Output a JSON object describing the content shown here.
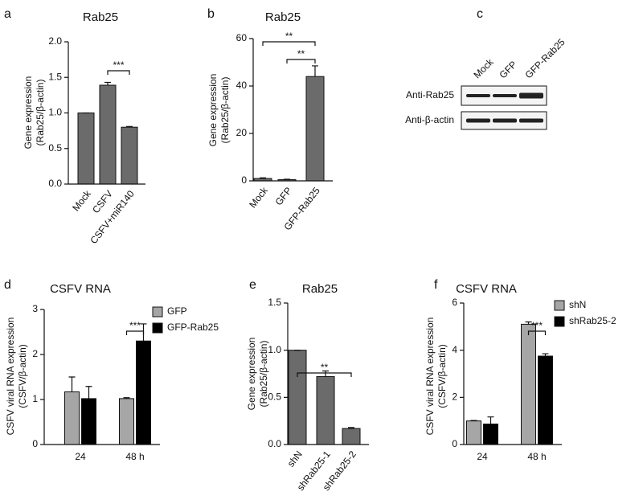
{
  "chart_data": [
    {
      "panel": "a",
      "type": "bar",
      "title": "Rab25",
      "ylabel": [
        "Gene expression",
        "(Rab25/β-actin)"
      ],
      "categories": [
        "Mock",
        "CSFV",
        "CSFV+miR140"
      ],
      "values": [
        1.0,
        1.39,
        0.8
      ],
      "errors": [
        0,
        0.04,
        0.01
      ],
      "color": "#6b6b6b",
      "ylim": [
        0,
        2
      ],
      "yticks": [
        {
          "value": 0,
          "label": "0.0"
        },
        {
          "value": 0.5,
          "label": "0.5"
        },
        {
          "value": 1,
          "label": "1.0"
        },
        {
          "value": 1.5,
          "label": "1.5"
        },
        {
          "value": 2,
          "label": "2.0"
        }
      ],
      "significance": [
        {
          "label": "***",
          "between": [
            "CSFV",
            "CSFV+miR140"
          ]
        }
      ]
    },
    {
      "panel": "b",
      "type": "bar",
      "title": "Rab25",
      "ylabel": [
        "Gene expression",
        "(Rab25/β-actin)"
      ],
      "categories": [
        "Mock",
        "GFP",
        "GFP-Rab25"
      ],
      "values": [
        1.0,
        0.5,
        44
      ],
      "errors": [
        0.3,
        0.2,
        4.5
      ],
      "color": "#6b6b6b",
      "ylim": [
        0,
        60
      ],
      "yticks": [
        0,
        20,
        40,
        60
      ],
      "significance": [
        {
          "label": "**",
          "between": [
            "Mock",
            "GFP-Rab25"
          ]
        },
        {
          "label": "**",
          "between": [
            "GFP",
            "GFP-Rab25"
          ]
        }
      ]
    },
    {
      "panel": "c",
      "type": "blot",
      "lanes": [
        "Mock",
        "GFP",
        "GFP-Rab25"
      ],
      "rows": [
        "Anti-Rab25",
        "Anti-β-actin"
      ]
    },
    {
      "panel": "d",
      "type": "bar",
      "title": "CSFV RNA",
      "ylabel": [
        "CSFV viral RNA expression",
        "(CSFV/β-actin)"
      ],
      "categories": [
        "24",
        "48 h"
      ],
      "series": [
        {
          "name": "GFP",
          "color": "#a6a6a6",
          "values": [
            1.17,
            1.02
          ],
          "errors": [
            0.33,
            0.02
          ]
        },
        {
          "name": "GFP-Rab25",
          "color": "#000000",
          "values": [
            1.02,
            2.3
          ],
          "errors": [
            0.27,
            0.38
          ]
        }
      ],
      "ylim": [
        0,
        3
      ],
      "yticks": [
        0,
        1,
        2,
        3
      ],
      "significance": [
        {
          "label": "***",
          "category": "48 h"
        }
      ]
    },
    {
      "panel": "e",
      "type": "bar",
      "title": "Rab25",
      "ylabel": [
        "Gene expression",
        "(Rab25/β-actin)"
      ],
      "categories": [
        "shN",
        "shRab25-1",
        "shRab25-2"
      ],
      "values": [
        1.0,
        0.72,
        0.17
      ],
      "errors": [
        0,
        0.06,
        0.01
      ],
      "color": "#6b6b6b",
      "ylim": [
        0,
        1.5
      ],
      "yticks": [
        {
          "value": 0,
          "label": "0.0"
        },
        {
          "value": 0.5,
          "label": "0.5"
        },
        {
          "value": 1,
          "label": "1.0"
        },
        {
          "value": 1.5,
          "label": "1.5"
        }
      ],
      "significance": [
        {
          "label": "**",
          "between": [
            "shN",
            "shRab25-2"
          ]
        }
      ]
    },
    {
      "panel": "f",
      "type": "bar",
      "title": "CSFV RNA",
      "ylabel": [
        "CSFV viral RNA expression",
        "(CSFV/β-actin)"
      ],
      "categories": [
        "24",
        "48 h"
      ],
      "series": [
        {
          "name": "shN",
          "color": "#a6a6a6",
          "values": [
            1.0,
            5.1
          ],
          "errors": [
            0.02,
            0.1
          ]
        },
        {
          "name": "shRab25-2",
          "color": "#000000",
          "values": [
            0.87,
            3.75
          ],
          "errors": [
            0.3,
            0.1
          ]
        }
      ],
      "ylim": [
        0,
        6
      ],
      "yticks": [
        0,
        2,
        4,
        6
      ],
      "significance": [
        {
          "label": "***",
          "category": "48 h"
        }
      ]
    }
  ]
}
